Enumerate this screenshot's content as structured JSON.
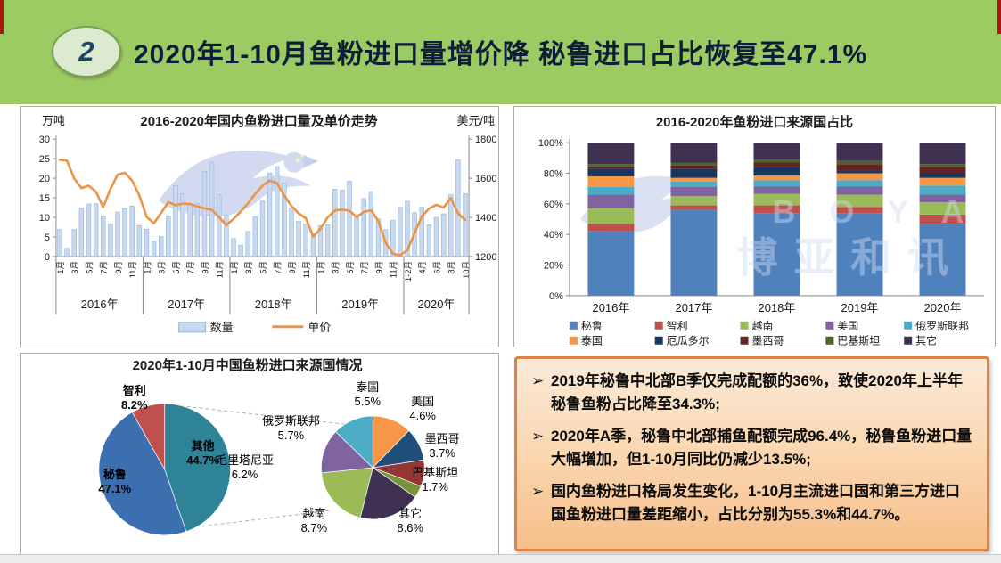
{
  "slide": {
    "number": "2",
    "title": "2020年1-10月鱼粉进口量增价降 秘鲁进口占比恢复至47.1%"
  },
  "watermark": {
    "letters": "B O Y A R",
    "cn": "博亚和讯"
  },
  "colors": {
    "header_green": "#9CCB63",
    "title_navy": "#0F1E38",
    "bar_fill": "#C6D9F1",
    "bar_stroke": "#95B3D7",
    "price_line": "#ED9344",
    "notes_border": "#DC8348"
  },
  "chart_data": [
    {
      "type": "bar",
      "note": "combo bar+line, monthly values estimated from pixels",
      "title": "2016-2020年国内鱼粉进口量及单价走势",
      "ylabel_left": "万吨",
      "ylabel_right": "美元/吨",
      "ylim_left": [
        0,
        30
      ],
      "yticks_left": [
        0,
        5,
        10,
        15,
        20,
        25,
        30
      ],
      "ylim_right": [
        1200,
        1800
      ],
      "yticks_right": [
        1200,
        1400,
        1600,
        1800
      ],
      "legend": [
        {
          "name": "数量",
          "kind": "bar"
        },
        {
          "name": "单价",
          "kind": "line"
        }
      ],
      "years": [
        {
          "label": "2016年",
          "months": [
            "1月",
            "2月",
            "3月",
            "4月",
            "5月",
            "6月",
            "7月",
            "8月",
            "9月",
            "10月",
            "11月",
            "12月"
          ],
          "quantity": [
            6.9,
            2.1,
            6.9,
            12.4,
            13.4,
            13.5,
            10.4,
            8.3,
            11.4,
            12.2,
            12.9,
            7.9
          ],
          "price": [
            1694,
            1690,
            1598,
            1550,
            1562,
            1532,
            1452,
            1545,
            1618,
            1628,
            1588,
            1512
          ]
        },
        {
          "label": "2017年",
          "months": [
            "1月",
            "2月",
            "3月",
            "4月",
            "5月",
            "6月",
            "7月",
            "8月",
            "9月",
            "10月",
            "11月",
            "12月"
          ],
          "quantity": [
            7.0,
            4.0,
            5.1,
            10.4,
            18.1,
            16.0,
            13.4,
            13.5,
            21.8,
            24.0,
            15.8,
            10.6
          ],
          "price": [
            1402,
            1370,
            1422,
            1478,
            1462,
            1470,
            1468,
            1456,
            1446,
            1438,
            1402,
            1360
          ]
        },
        {
          "label": "2018年",
          "months": [
            "1月",
            "2月",
            "3月",
            "4月",
            "5月",
            "6月",
            "7月",
            "8月",
            "9月",
            "10月",
            "11月",
            "12月"
          ],
          "quantity": [
            4.6,
            2.9,
            6.4,
            10.2,
            14.2,
            21.3,
            23.0,
            18.8,
            12.4,
            9.0,
            8.3,
            5.9
          ],
          "price": [
            1392,
            1430,
            1472,
            1520,
            1562,
            1588,
            1575,
            1512,
            1458,
            1420,
            1395,
            1302
          ]
        },
        {
          "label": "2019年",
          "months": [
            "1月",
            "2月",
            "3月",
            "4月",
            "5月",
            "6月",
            "7月",
            "8月",
            "9月",
            "10月",
            "11月",
            "12月"
          ],
          "quantity": [
            7.9,
            8.1,
            17.2,
            17.0,
            19.3,
            10.0,
            14.8,
            16.6,
            9.6,
            6.9,
            9.3,
            12.6
          ],
          "price": [
            1342,
            1400,
            1435,
            1440,
            1434,
            1402,
            1428,
            1436,
            1380,
            1270,
            1215,
            1206
          ]
        },
        {
          "label": "2020年",
          "months": [
            "1-2月",
            "3月",
            "4月",
            "5月",
            "6月",
            "7月",
            "8月",
            "9月",
            "10月"
          ],
          "quantity": [
            14.1,
            11.2,
            12.6,
            8.1,
            10.0,
            10.9,
            15.8,
            24.7,
            16.1
          ],
          "price": [
            1232,
            1320,
            1405,
            1445,
            1464,
            1450,
            1498,
            1420,
            1386
          ]
        }
      ]
    },
    {
      "type": "bar",
      "stacked": true,
      "percent": true,
      "title": "2016-2020年鱼粉进口来源国占比",
      "categories": [
        "2016年",
        "2017年",
        "2018年",
        "2019年",
        "2020年"
      ],
      "ytick_labels": [
        "0%",
        "20%",
        "40%",
        "60%",
        "80%",
        "100%"
      ],
      "ylim": [
        0,
        100
      ],
      "legend_position": "bottom",
      "series": [
        {
          "name": "秘鲁",
          "color": "#4F81BD",
          "values": [
            42,
            56,
            54,
            54,
            47
          ]
        },
        {
          "name": "智利",
          "color": "#C0504D",
          "values": [
            5,
            3,
            5,
            4,
            6
          ]
        },
        {
          "name": "越南",
          "color": "#9BBB59",
          "values": [
            10,
            6,
            7.5,
            8,
            8
          ]
        },
        {
          "name": "美国",
          "color": "#8064A2",
          "values": [
            9,
            6,
            5,
            5.5,
            5
          ]
        },
        {
          "name": "俄罗斯联邦",
          "color": "#4BACC6",
          "values": [
            5,
            3.5,
            4,
            4,
            6
          ]
        },
        {
          "name": "泰国",
          "color": "#F79646",
          "values": [
            7,
            2.5,
            3,
            4.5,
            5
          ]
        },
        {
          "name": "厄瓜多尔",
          "color": "#17375E",
          "values": [
            5,
            6,
            5.5,
            2,
            3
          ]
        },
        {
          "name": "墨西哥",
          "color": "#632423",
          "values": [
            1.5,
            2,
            3,
            4,
            4
          ]
        },
        {
          "name": "巴基斯坦",
          "color": "#4F6228",
          "values": [
            1.5,
            2,
            2,
            2,
            2
          ]
        },
        {
          "name": "其它",
          "color": "#3F3151",
          "values": [
            14,
            13,
            11,
            12,
            14
          ]
        }
      ]
    },
    {
      "type": "pie",
      "variant": "pie-of-pie",
      "title": "2020年1-10月中国鱼粉进口来源国情况",
      "main_pie": [
        {
          "label": "其他",
          "value": 44.7,
          "pct": "44.7%",
          "color": "#2E8397"
        },
        {
          "label": "秘鲁",
          "value": 47.1,
          "pct": "47.1%",
          "color": "#3C6FB0"
        },
        {
          "label": "智利",
          "value": 8.2,
          "pct": "8.2%",
          "color": "#C0504D"
        }
      ],
      "secondary_pie_total": 44.7,
      "secondary_pie": [
        {
          "label": "泰国",
          "value": 5.5,
          "pct": "5.5%",
          "color": "#F79646"
        },
        {
          "label": "美国",
          "value": 4.6,
          "pct": "4.6%",
          "color": "#1F4E79"
        },
        {
          "label": "墨西哥",
          "value": 3.7,
          "pct": "3.7%",
          "color": "#943634"
        },
        {
          "label": "巴基斯坦",
          "value": 1.7,
          "pct": "1.7%",
          "color": "#77933C"
        },
        {
          "label": "其它",
          "value": 8.6,
          "pct": "8.6%",
          "color": "#3F3151"
        },
        {
          "label": "越南",
          "value": 8.7,
          "pct": "8.7%",
          "color": "#9BBB59"
        },
        {
          "label": "毛里塔尼亚",
          "value": 6.2,
          "pct": "6.2%",
          "color": "#8064A2"
        },
        {
          "label": "俄罗斯联邦",
          "value": 5.7,
          "pct": "5.7%",
          "color": "#4BACC6"
        }
      ]
    }
  ],
  "notes": {
    "marker": "➢",
    "bullets": [
      "2019年秘鲁中北部B季仅完成配额的36%，致使2020年上半年秘鲁鱼粉占比降至34.3%;",
      "2020年A季，秘鲁中北部捕鱼配额完成96.4%，秘鲁鱼粉进口量大幅增加，但1-10月同比仍减少13.5%;",
      "国内鱼粉进口格局发生变化，1-10月主流进口国和第三方进口国鱼粉进口量差距缩小，占比分别为55.3%和44.7%。"
    ]
  }
}
